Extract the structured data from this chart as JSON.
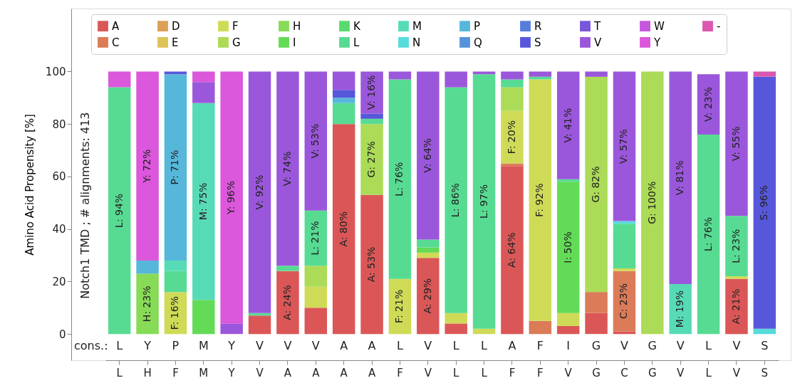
{
  "chart_data": {
    "type": "bar",
    "stacked": true,
    "ylabel": "Amino Acid Propensity [%]",
    "categories": [
      "L",
      "H",
      "F",
      "M",
      "Y",
      "V",
      "A",
      "A",
      "A",
      "A",
      "F",
      "V",
      "L",
      "L",
      "F",
      "F",
      "V",
      "G",
      "C",
      "G",
      "V",
      "L",
      "V",
      "S"
    ],
    "ylim": [
      -10,
      124
    ],
    "yticks": [
      0,
      20,
      40,
      60,
      80,
      100
    ],
    "grid": false,
    "legend": "top",
    "annotations": [
      "Notch1 TMD ; # alignments: 413",
      "cons.:",
      "L",
      "Y",
      "P",
      "M",
      "Y",
      "V",
      "V",
      "V",
      "A",
      "A",
      "L",
      "V",
      "L",
      "L",
      "A",
      "F",
      "I",
      "G",
      "V",
      "G",
      "V",
      "L",
      "V",
      "S"
    ],
    "series": [
      {
        "name": "A",
        "color": "#db5757",
        "values": [
          null,
          null,
          null,
          null,
          null,
          7,
          24,
          10,
          80,
          53,
          null,
          29,
          4,
          null,
          64,
          null,
          3,
          8,
          1,
          null,
          null,
          null,
          21,
          null
        ],
        "value_labels": [
          null,
          null,
          null,
          null,
          null,
          null,
          "A: 24%",
          null,
          "A: 80%",
          "A: 53%",
          null,
          "A: 29%",
          null,
          null,
          "A: 64%",
          null,
          null,
          null,
          null,
          null,
          null,
          null,
          "A: 21%",
          null
        ]
      },
      {
        "name": "C",
        "color": "#db7b57",
        "values": [
          null,
          null,
          null,
          null,
          null,
          null,
          null,
          null,
          null,
          null,
          null,
          null,
          null,
          null,
          1,
          5,
          null,
          8,
          23,
          null,
          null,
          null,
          null,
          null
        ],
        "value_labels": [
          null,
          null,
          null,
          null,
          null,
          null,
          null,
          null,
          null,
          null,
          null,
          null,
          null,
          null,
          null,
          null,
          null,
          null,
          "C: 23%",
          null,
          null,
          null,
          null,
          null
        ]
      },
      {
        "name": "D",
        "color": "#db9f57",
        "values": [
          null,
          null,
          null,
          null,
          null,
          null,
          null,
          null,
          null,
          null,
          null,
          null,
          null,
          null,
          null,
          null,
          null,
          null,
          null,
          null,
          null,
          null,
          null,
          null
        ]
      },
      {
        "name": "E",
        "color": "#dbc357",
        "values": [
          null,
          null,
          null,
          null,
          null,
          null,
          null,
          null,
          null,
          null,
          null,
          null,
          null,
          null,
          null,
          null,
          null,
          null,
          null,
          null,
          null,
          null,
          null,
          null
        ]
      },
      {
        "name": "F",
        "color": "#cfdb57",
        "values": [
          null,
          null,
          16,
          null,
          null,
          null,
          null,
          8,
          null,
          null,
          21,
          2,
          4,
          2,
          20,
          92,
          5,
          null,
          1,
          null,
          null,
          null,
          1,
          null
        ],
        "value_labels": [
          null,
          null,
          "F: 16%",
          null,
          null,
          null,
          null,
          null,
          null,
          null,
          "F: 21%",
          null,
          null,
          null,
          "F: 20%",
          "F: 92%",
          null,
          null,
          null,
          null,
          null,
          null,
          null,
          null
        ]
      },
      {
        "name": "G",
        "color": "#abdb57",
        "values": [
          null,
          null,
          null,
          null,
          null,
          null,
          null,
          8,
          null,
          27,
          null,
          null,
          null,
          null,
          9,
          null,
          null,
          82,
          null,
          100,
          null,
          null,
          null,
          null
        ],
        "value_labels": [
          null,
          null,
          null,
          null,
          null,
          null,
          null,
          null,
          null,
          "G: 27%",
          null,
          null,
          null,
          null,
          null,
          null,
          null,
          "G: 82%",
          null,
          "G: 100%",
          null,
          null,
          null,
          null
        ]
      },
      {
        "name": "H",
        "color": "#87db57",
        "values": [
          null,
          23,
          null,
          null,
          null,
          null,
          null,
          null,
          null,
          null,
          null,
          null,
          null,
          null,
          null,
          null,
          null,
          null,
          null,
          null,
          null,
          null,
          null,
          null
        ],
        "value_labels": [
          null,
          "H: 23%",
          null,
          null,
          null,
          null,
          null,
          null,
          null,
          null,
          null,
          null,
          null,
          null,
          null,
          null,
          null,
          null,
          null,
          null,
          null,
          null,
          null,
          null
        ]
      },
      {
        "name": "I",
        "color": "#63db57",
        "values": [
          null,
          null,
          null,
          13,
          null,
          null,
          null,
          null,
          null,
          null,
          null,
          2,
          null,
          null,
          null,
          null,
          50,
          null,
          null,
          null,
          null,
          null,
          null,
          null
        ],
        "value_labels": [
          null,
          null,
          null,
          null,
          null,
          null,
          null,
          null,
          null,
          null,
          null,
          null,
          null,
          null,
          null,
          null,
          "I: 50%",
          null,
          null,
          null,
          null,
          null,
          null,
          null
        ]
      },
      {
        "name": "K",
        "color": "#57db6f",
        "values": [
          null,
          null,
          null,
          null,
          null,
          null,
          null,
          null,
          null,
          null,
          null,
          null,
          null,
          null,
          null,
          null,
          null,
          null,
          null,
          null,
          null,
          null,
          null,
          null
        ]
      },
      {
        "name": "L",
        "color": "#57db93",
        "values": [
          94,
          null,
          8,
          null,
          null,
          1,
          2,
          21,
          8,
          2,
          76,
          3,
          86,
          97,
          3,
          1,
          1,
          null,
          17,
          null,
          null,
          76,
          23,
          null
        ],
        "value_labels": [
          "L: 94%",
          null,
          null,
          null,
          null,
          null,
          null,
          "L: 21%",
          null,
          null,
          "L: 76%",
          null,
          "L: 86%",
          "L: 97%",
          null,
          null,
          null,
          null,
          null,
          null,
          null,
          "L: 76%",
          "L: 23%",
          null
        ]
      },
      {
        "name": "M",
        "color": "#57dbb7",
        "values": [
          null,
          null,
          4,
          75,
          null,
          null,
          null,
          null,
          null,
          null,
          null,
          null,
          null,
          null,
          null,
          null,
          null,
          null,
          null,
          null,
          19,
          null,
          null,
          null
        ],
        "value_labels": [
          null,
          null,
          null,
          "M: 75%",
          null,
          null,
          null,
          null,
          null,
          null,
          null,
          null,
          null,
          null,
          null,
          null,
          null,
          null,
          null,
          null,
          "M: 19%",
          null,
          null,
          null
        ]
      },
      {
        "name": "N",
        "color": "#57dbdb",
        "values": [
          null,
          null,
          null,
          null,
          null,
          null,
          null,
          null,
          null,
          null,
          null,
          null,
          null,
          null,
          null,
          null,
          null,
          null,
          1,
          null,
          null,
          null,
          null,
          2
        ]
      },
      {
        "name": "P",
        "color": "#57b7db",
        "values": [
          null,
          5,
          71,
          null,
          null,
          null,
          null,
          null,
          2,
          null,
          null,
          null,
          null,
          null,
          null,
          null,
          null,
          null,
          null,
          null,
          null,
          null,
          null,
          null
        ],
        "value_labels": [
          null,
          null,
          "P: 71%",
          null,
          null,
          null,
          null,
          null,
          null,
          null,
          null,
          null,
          null,
          null,
          null,
          null,
          null,
          null,
          null,
          null,
          null,
          null,
          null,
          null
        ]
      },
      {
        "name": "Q",
        "color": "#5793db",
        "values": [
          null,
          null,
          null,
          null,
          null,
          null,
          null,
          null,
          null,
          null,
          null,
          null,
          null,
          null,
          null,
          null,
          null,
          null,
          null,
          null,
          null,
          null,
          null,
          null
        ]
      },
      {
        "name": "R",
        "color": "#577ddb",
        "values": [
          null,
          null,
          null,
          null,
          null,
          null,
          null,
          null,
          null,
          null,
          null,
          null,
          null,
          null,
          null,
          null,
          null,
          null,
          null,
          null,
          null,
          null,
          null,
          null
        ]
      },
      {
        "name": "S",
        "color": "#5757db",
        "values": [
          null,
          null,
          1,
          null,
          null,
          null,
          null,
          null,
          3,
          2,
          null,
          null,
          null,
          null,
          null,
          null,
          null,
          null,
          null,
          null,
          null,
          null,
          null,
          96
        ],
        "value_labels": [
          null,
          null,
          null,
          null,
          null,
          null,
          null,
          null,
          null,
          null,
          null,
          null,
          null,
          null,
          null,
          null,
          null,
          null,
          null,
          null,
          null,
          null,
          null,
          "S: 96%"
        ]
      },
      {
        "name": "T",
        "color": "#7857db",
        "values": [
          null,
          null,
          null,
          null,
          null,
          null,
          null,
          null,
          null,
          null,
          null,
          null,
          null,
          null,
          null,
          null,
          null,
          null,
          null,
          null,
          null,
          null,
          null,
          null
        ]
      },
      {
        "name": "V",
        "color": "#9b57db",
        "values": [
          null,
          null,
          null,
          8,
          4,
          92,
          74,
          53,
          7,
          16,
          3,
          64,
          6,
          1,
          3,
          2,
          41,
          2,
          57,
          null,
          81,
          23,
          55,
          null
        ],
        "value_labels": [
          null,
          null,
          null,
          null,
          null,
          "V: 92%",
          "V: 74%",
          "V: 53%",
          null,
          "V: 16%",
          null,
          "V: 64%",
          null,
          null,
          null,
          null,
          "V: 41%",
          null,
          "V: 57%",
          null,
          "V: 81%",
          "V: 23%",
          "V: 55%",
          null
        ]
      },
      {
        "name": "W",
        "color": "#c457db",
        "values": [
          null,
          null,
          null,
          null,
          null,
          null,
          null,
          null,
          null,
          null,
          null,
          null,
          null,
          null,
          null,
          null,
          null,
          null,
          null,
          null,
          null,
          null,
          null,
          null
        ]
      },
      {
        "name": "Y",
        "color": "#db57db",
        "values": [
          6,
          72,
          null,
          4,
          96,
          null,
          null,
          null,
          null,
          null,
          null,
          null,
          null,
          null,
          null,
          null,
          null,
          null,
          null,
          null,
          null,
          null,
          null,
          null
        ],
        "value_labels": [
          null,
          "Y: 72%",
          null,
          null,
          "Y: 96%",
          null,
          null,
          null,
          null,
          null,
          null,
          null,
          null,
          null,
          null,
          null,
          null,
          null,
          null,
          null,
          null,
          null,
          null,
          null
        ]
      },
      {
        "name": "-",
        "color": "#db57b0",
        "values": [
          null,
          null,
          null,
          null,
          null,
          null,
          null,
          null,
          null,
          null,
          null,
          null,
          null,
          null,
          null,
          null,
          null,
          null,
          null,
          null,
          null,
          null,
          null,
          2
        ]
      }
    ]
  }
}
